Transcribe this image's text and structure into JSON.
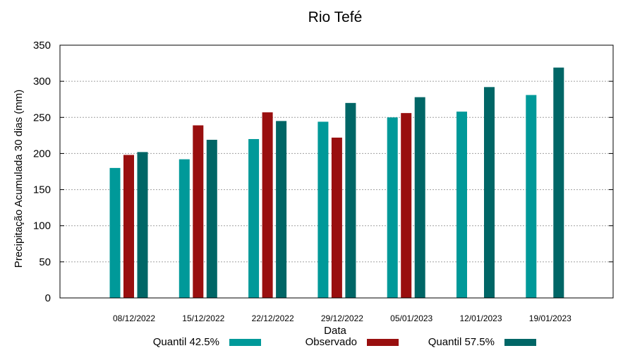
{
  "chart_data": {
    "type": "bar",
    "title": "Rio Tefé",
    "xlabel": "Data",
    "ylabel": "Precipitação Acumulada 30 dias (mm)",
    "ylim": [
      0,
      350
    ],
    "yticks": [
      0,
      50,
      100,
      150,
      200,
      250,
      300,
      350
    ],
    "grid": true,
    "legend_placement": "bottom",
    "categories": [
      "08/12/2022",
      "15/12/2022",
      "22/12/2022",
      "29/12/2022",
      "05/01/2023",
      "12/01/2023",
      "19/01/2023"
    ],
    "series": [
      {
        "name": "Quantil 42.5%",
        "color": "#009999",
        "values": [
          180,
          192,
          220,
          244,
          250,
          258,
          281
        ]
      },
      {
        "name": "Observado",
        "color": "#990f0f",
        "values": [
          198,
          239,
          257,
          222,
          256,
          null,
          null
        ]
      },
      {
        "name": "Quantil 57.5%",
        "color": "#006666",
        "values": [
          202,
          219,
          245,
          270,
          278,
          292,
          319
        ]
      }
    ]
  }
}
